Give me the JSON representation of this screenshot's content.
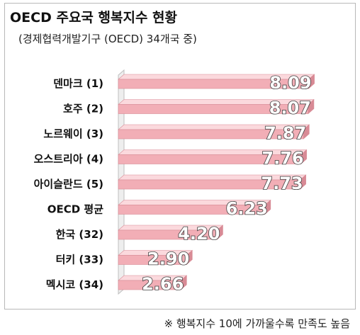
{
  "title": "OECD 주요국 행복지수 현황",
  "subtitle": "(경제협력개발기구 (OECD) 34개국 중)",
  "note": "※ 행복지수 10에 가까울수록 만족도 높음",
  "colors": {
    "bar": "#f2aeb6",
    "bar_dark": "#d88a95",
    "bar_light": "#fbd9dd",
    "axis": "#bfbfbf",
    "value_text": "#ffffff",
    "value_outline": "#404040"
  },
  "chart_data": {
    "type": "bar",
    "orientation": "horizontal",
    "style": "3d",
    "title": "OECD 주요국 행복지수 현황",
    "subtitle": "(경제협력개발기구 (OECD) 34개국 중)",
    "categories": [
      "덴마크 (1)",
      "호주 (2)",
      "노르웨이 (3)",
      "오스트리아 (4)",
      "아이슬란드 (5)",
      "OECD 평균",
      "한국 (32)",
      "터키 (33)",
      "멕시코 (34)"
    ],
    "values": [
      8.09,
      8.07,
      7.87,
      7.76,
      7.73,
      6.23,
      4.2,
      2.9,
      2.66
    ],
    "data_labels": [
      "8.09",
      "8.07",
      "7.87",
      "7.76",
      "7.73",
      "6.23",
      "4.20",
      "2.90",
      "2.66"
    ],
    "xlim": [
      0,
      8.5
    ],
    "grid": false,
    "legend": "none"
  }
}
